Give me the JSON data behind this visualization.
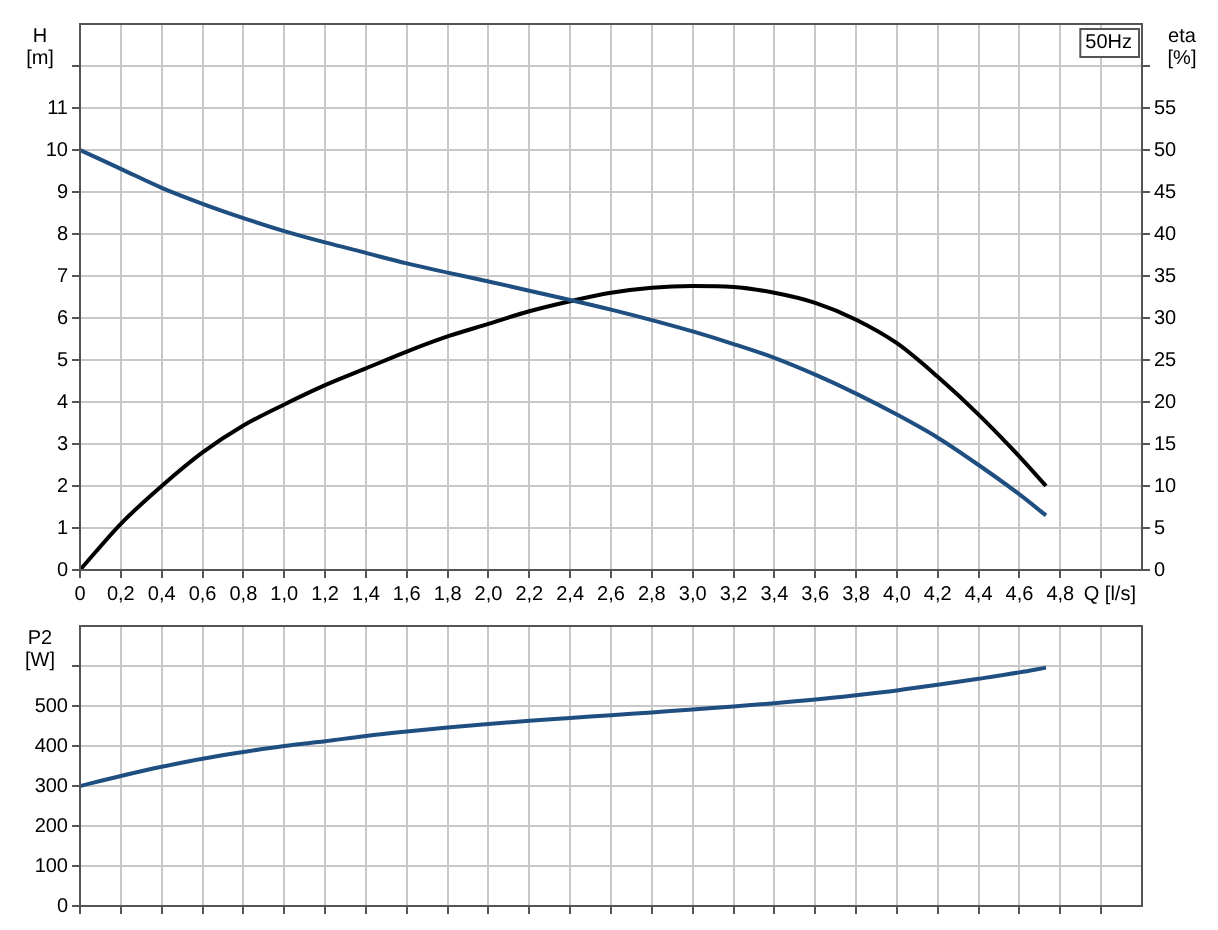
{
  "chart_data": [
    {
      "type": "line",
      "xlabel": "Q [l/s]",
      "ylabel": "H [m]",
      "y2label": "eta [%]",
      "annotations": [
        "50Hz"
      ],
      "grid": true,
      "marker": "none",
      "line_style": "solid",
      "xlim": [
        0,
        5.2
      ],
      "xticks": [
        0,
        {
          "value": 0.2,
          "label": "0,2"
        },
        {
          "value": 0.4,
          "label": "0,4"
        },
        {
          "value": 0.6,
          "label": "0,6"
        },
        {
          "value": 0.8,
          "label": "0,8"
        },
        {
          "value": 1.0,
          "label": "1,0"
        },
        {
          "value": 1.2,
          "label": "1,2"
        },
        {
          "value": 1.4,
          "label": "1,4"
        },
        {
          "value": 1.6,
          "label": "1,6"
        },
        {
          "value": 1.8,
          "label": "1,8"
        },
        {
          "value": 2.0,
          "label": "2,0"
        },
        {
          "value": 2.2,
          "label": "2,2"
        },
        {
          "value": 2.4,
          "label": "2,4"
        },
        {
          "value": 2.6,
          "label": "2,6"
        },
        {
          "value": 2.8,
          "label": "2,8"
        },
        {
          "value": 3.0,
          "label": "3,0"
        },
        {
          "value": 3.2,
          "label": "3,2"
        },
        {
          "value": 3.4,
          "label": "3,4"
        },
        {
          "value": 3.6,
          "label": "3,6"
        },
        {
          "value": 3.8,
          "label": "3,8"
        },
        {
          "value": 4.0,
          "label": "4,0"
        },
        {
          "value": 4.2,
          "label": "4,2"
        },
        {
          "value": 4.4,
          "label": "4,4"
        },
        {
          "value": 4.6,
          "label": "4,6"
        },
        {
          "value": 4.8,
          "label": "4,8"
        },
        {
          "value": 5.0,
          "label": null
        }
      ],
      "ylim": [
        0,
        13
      ],
      "yticks": [
        0,
        1,
        2,
        3,
        4,
        5,
        6,
        7,
        8,
        9,
        10,
        11,
        {
          "value": 12,
          "label": null
        }
      ],
      "y2lim": [
        0,
        65
      ],
      "y2ticks": [
        0,
        5,
        10,
        15,
        20,
        25,
        30,
        35,
        40,
        45,
        50,
        55,
        {
          "value": 60,
          "label": null
        }
      ],
      "x": [
        0,
        0.2,
        0.4,
        0.6,
        0.8,
        1.0,
        1.2,
        1.4,
        1.6,
        1.8,
        2.0,
        2.2,
        2.4,
        2.6,
        2.8,
        3.0,
        3.2,
        3.4,
        3.6,
        3.8,
        4.0,
        4.2,
        4.4,
        4.6,
        4.73
      ],
      "series": [
        {
          "color": "#1f4e80",
          "values": [
            10,
            9.55,
            9.1,
            8.72,
            8.38,
            8.07,
            7.8,
            7.55,
            7.3,
            7.08,
            6.87,
            6.65,
            6.43,
            6.2,
            5.95,
            5.68,
            5.38,
            5.05,
            4.65,
            4.2,
            3.7,
            3.15,
            2.5,
            1.8,
            1.3
          ]
        },
        {
          "color": "#000000",
          "axis": "y2",
          "values": [
            0,
            5.5,
            10,
            14,
            17.2,
            19.7,
            22,
            24,
            26,
            27.8,
            29.3,
            30.8,
            32,
            33,
            33.6,
            33.8,
            33.7,
            33,
            31.8,
            29.8,
            27,
            23,
            18.5,
            13.5,
            10
          ]
        }
      ]
    },
    {
      "type": "line",
      "ylabel": "P2 [W]",
      "grid": true,
      "marker": "none",
      "line_style": "solid",
      "tick_labels": "y",
      "xlim": [
        0,
        5.2
      ],
      "xticks": [
        0,
        0.2,
        0.4,
        0.6,
        0.8,
        1.0,
        1.2,
        1.4,
        1.6,
        1.8,
        2.0,
        2.2,
        2.4,
        2.6,
        2.8,
        3.0,
        3.2,
        3.4,
        3.6,
        3.8,
        4.0,
        4.2,
        4.4,
        4.6,
        4.8,
        5.0
      ],
      "ylim": [
        0,
        700
      ],
      "yticks": [
        0,
        100,
        200,
        300,
        400,
        500,
        {
          "value": 600,
          "label": null
        }
      ],
      "x": [
        0,
        0.2,
        0.4,
        0.6,
        0.8,
        1.0,
        1.2,
        1.4,
        1.6,
        1.8,
        2.0,
        2.2,
        2.4,
        2.6,
        2.8,
        3.0,
        3.2,
        3.4,
        3.6,
        3.8,
        4.0,
        4.2,
        4.4,
        4.6,
        4.73
      ],
      "series": [
        {
          "color": "#1f4e80",
          "values": [
            300,
            325,
            348,
            368,
            385,
            400,
            412,
            425,
            436,
            446,
            455,
            463,
            470,
            477,
            484,
            491,
            499,
            507,
            516,
            527,
            539,
            553,
            568,
            584,
            596
          ]
        }
      ]
    }
  ]
}
